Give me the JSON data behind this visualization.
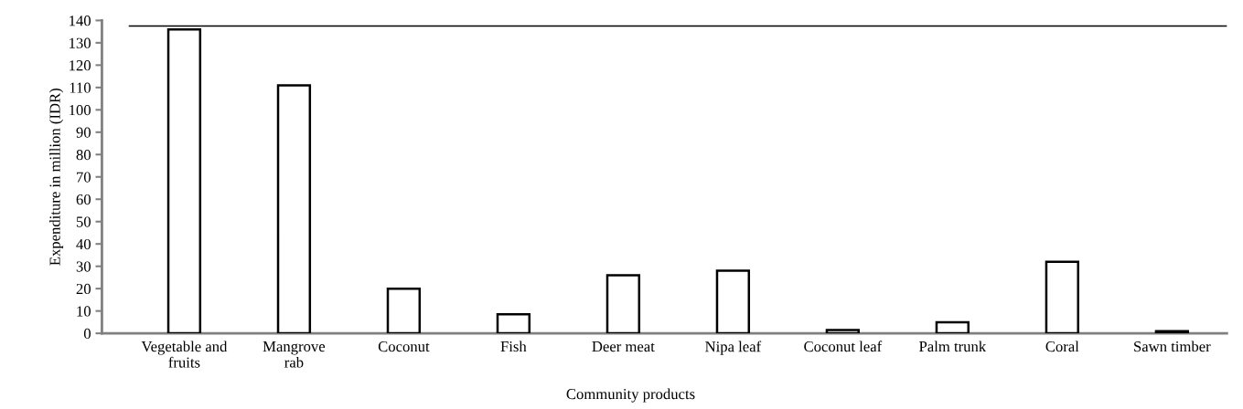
{
  "chart_data": {
    "type": "bar",
    "xlabel": "Community products",
    "ylabel": "Expenditure in million (IDR)",
    "categories": [
      "Vegetable and\nfruits",
      "Mangrove\nrab",
      "Coconut",
      "Fish",
      "Deer meat",
      "Nipa leaf",
      "Coconut leaf",
      "Palm trunk",
      "Coral",
      "Sawn timber"
    ],
    "values": [
      136,
      111,
      20,
      8.5,
      26,
      28,
      1.5,
      5,
      32,
      1
    ],
    "color": "#ffffff",
    "ylim": [
      0,
      140
    ],
    "yticks": [
      0,
      10,
      20,
      30,
      40,
      50,
      60,
      70,
      80,
      90,
      100,
      110,
      120,
      130,
      140
    ],
    "ref_lines": [
      {
        "axis": "y",
        "value": 137.5,
        "label": null,
        "color": "#000000"
      }
    ],
    "grid": false,
    "legend": false
  }
}
